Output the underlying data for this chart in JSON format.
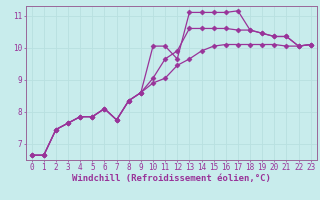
{
  "xlabel": "Windchill (Refroidissement éolien,°C)",
  "bg_color": "#c8ecec",
  "line_color": "#993399",
  "grid_color": "#b8e0e0",
  "spine_color": "#996699",
  "xlim": [
    -0.5,
    23.5
  ],
  "ylim": [
    6.5,
    11.3
  ],
  "xticks": [
    0,
    1,
    2,
    3,
    4,
    5,
    6,
    7,
    8,
    9,
    10,
    11,
    12,
    13,
    14,
    15,
    16,
    17,
    18,
    19,
    20,
    21,
    22,
    23
  ],
  "yticks": [
    7,
    8,
    9,
    10,
    11
  ],
  "curve1_x": [
    0,
    1,
    2,
    3,
    4,
    5,
    6,
    7,
    8,
    9,
    10,
    11,
    12,
    13,
    14,
    15,
    16,
    17,
    18,
    19,
    20,
    21,
    22,
    23
  ],
  "curve1_y": [
    6.65,
    6.65,
    7.45,
    7.65,
    7.85,
    7.85,
    8.1,
    7.75,
    8.35,
    8.6,
    10.05,
    10.05,
    9.65,
    11.1,
    11.1,
    11.1,
    11.1,
    11.15,
    10.55,
    10.45,
    10.35,
    10.35,
    10.05,
    10.1
  ],
  "curve2_x": [
    0,
    1,
    2,
    3,
    4,
    5,
    6,
    7,
    8,
    9,
    10,
    11,
    12,
    13,
    14,
    15,
    16,
    17,
    18,
    19,
    20,
    21,
    22,
    23
  ],
  "curve2_y": [
    6.65,
    6.65,
    7.45,
    7.65,
    7.85,
    7.85,
    8.1,
    7.75,
    8.35,
    8.6,
    9.05,
    9.65,
    9.9,
    10.6,
    10.6,
    10.6,
    10.6,
    10.55,
    10.55,
    10.45,
    10.35,
    10.35,
    10.05,
    10.1
  ],
  "curve3_x": [
    0,
    1,
    2,
    3,
    4,
    5,
    6,
    7,
    8,
    9,
    10,
    11,
    12,
    13,
    14,
    15,
    16,
    17,
    18,
    19,
    20,
    21,
    22,
    23
  ],
  "curve3_y": [
    6.65,
    6.65,
    7.45,
    7.65,
    7.85,
    7.85,
    8.1,
    7.75,
    8.35,
    8.6,
    8.9,
    9.05,
    9.45,
    9.65,
    9.9,
    10.05,
    10.1,
    10.1,
    10.1,
    10.1,
    10.1,
    10.05,
    10.05,
    10.1
  ],
  "marker": "D",
  "markersize": 2.5,
  "linewidth": 0.9,
  "xlabel_fontsize": 6.5,
  "tick_fontsize": 5.5
}
